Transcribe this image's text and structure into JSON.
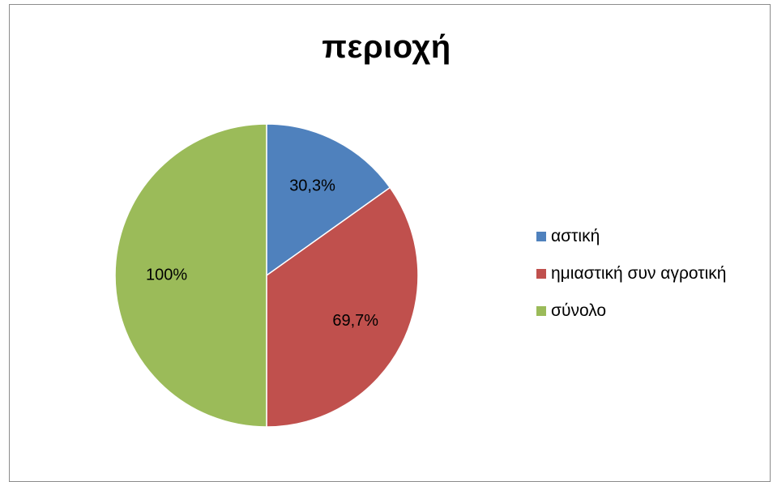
{
  "chart_data": {
    "type": "pie",
    "title": "περιοχή",
    "slices": [
      {
        "label": "αστική",
        "value": 30.3,
        "data_label": "30,3%",
        "color": "#4f81bd",
        "sweep_percent": 15.15
      },
      {
        "label": "ημιαστική συν αγροτική",
        "value": 69.7,
        "data_label": "69,7%",
        "color": "#c0504d",
        "sweep_percent": 34.85
      },
      {
        "label": "σύνολο",
        "value": 100,
        "data_label": "100%",
        "color": "#9bbb59",
        "sweep_percent": 50
      }
    ],
    "legend_position": "right"
  }
}
